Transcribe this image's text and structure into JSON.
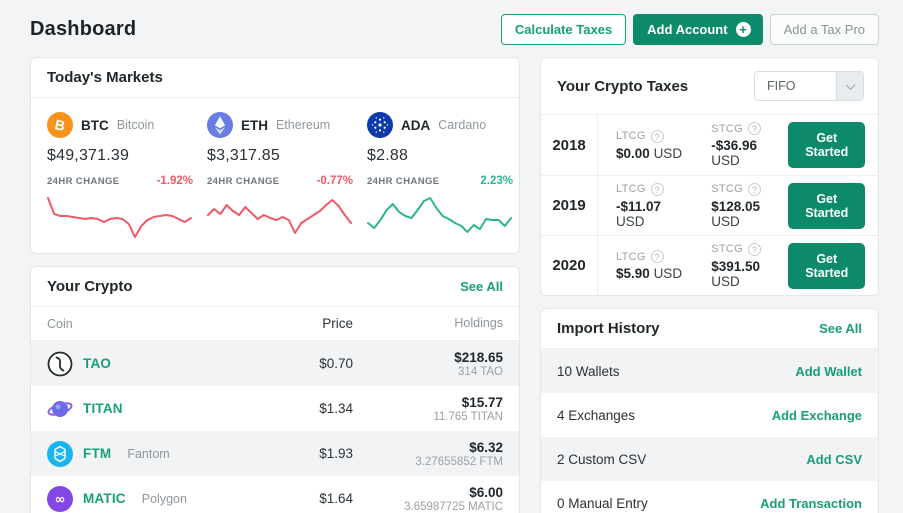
{
  "header": {
    "title": "Dashboard",
    "calculate_taxes_label": "Calculate Taxes",
    "add_account_label": "Add Account",
    "add_tax_pro_label": "Add a Tax Pro"
  },
  "colors": {
    "negative": "#ee5a65",
    "positive": "#2fb58e",
    "accent_link": "#17a077",
    "accent_button": "#0d8a69"
  },
  "markets": {
    "title": "Today's Markets",
    "change_label": "24HR CHANGE",
    "coins": [
      {
        "symbol": "BTC",
        "name": "Bitcoin",
        "price": "$49,371.39",
        "change": "-1.92%",
        "direction": "down",
        "icon_color": "#f7931a",
        "sparkline": [
          5,
          21,
          23,
          23,
          24,
          25,
          26,
          25,
          26,
          29,
          26,
          25,
          26,
          31,
          44,
          33,
          27,
          24,
          23,
          22,
          23,
          26,
          29,
          25
        ]
      },
      {
        "symbol": "ETH",
        "name": "Ethereum",
        "price": "$3,317.85",
        "change": "-0.77%",
        "direction": "down",
        "icon_color": "#687ce3",
        "sparkline": [
          22,
          16,
          21,
          12,
          18,
          22,
          14,
          20,
          26,
          22,
          25,
          27,
          24,
          27,
          40,
          30,
          26,
          22,
          18,
          12,
          7,
          13,
          22,
          30
        ]
      },
      {
        "symbol": "ADA",
        "name": "Cardano",
        "price": "$2.88",
        "change": "2.23%",
        "direction": "up",
        "icon_color": "#0d3aa9",
        "sparkline": [
          30,
          35,
          27,
          17,
          11,
          19,
          23,
          25,
          17,
          8,
          5,
          15,
          23,
          26,
          30,
          33,
          39,
          32,
          36,
          26,
          27,
          27,
          33,
          25
        ]
      }
    ]
  },
  "chart_data": [
    {
      "type": "line",
      "title": "BTC 24hr sparkline",
      "series": [
        {
          "name": "BTC",
          "values": [
            5,
            21,
            23,
            23,
            24,
            25,
            26,
            25,
            26,
            29,
            26,
            25,
            26,
            31,
            44,
            33,
            27,
            24,
            23,
            22,
            23,
            26,
            29,
            25
          ]
        }
      ],
      "trend": "down"
    },
    {
      "type": "line",
      "title": "ETH 24hr sparkline",
      "series": [
        {
          "name": "ETH",
          "values": [
            22,
            16,
            21,
            12,
            18,
            22,
            14,
            20,
            26,
            22,
            25,
            27,
            24,
            27,
            40,
            30,
            26,
            22,
            18,
            12,
            7,
            13,
            22,
            30
          ]
        }
      ],
      "trend": "down"
    },
    {
      "type": "line",
      "title": "ADA 24hr sparkline",
      "series": [
        {
          "name": "ADA",
          "values": [
            30,
            35,
            27,
            17,
            11,
            19,
            23,
            25,
            17,
            8,
            5,
            15,
            23,
            26,
            30,
            33,
            39,
            32,
            36,
            26,
            27,
            27,
            33,
            25
          ]
        }
      ],
      "trend": "up"
    }
  ],
  "your_crypto": {
    "title": "Your Crypto",
    "see_all_label": "See All",
    "columns": {
      "coin": "Coin",
      "price": "Price",
      "holdings": "Holdings"
    },
    "rows": [
      {
        "symbol": "TAO",
        "name": "",
        "price": "$0.70",
        "value": "$218.65",
        "amount": "314 TAO",
        "icon_color": "#ffffff"
      },
      {
        "symbol": "TITAN",
        "name": "",
        "price": "$1.34",
        "value": "$15.77",
        "amount": "11.765 TITAN",
        "icon_color": "#5f6fe8"
      },
      {
        "symbol": "FTM",
        "name": "Fantom",
        "price": "$1.93",
        "value": "$6.32",
        "amount": "3.27655852 FTM",
        "icon_color": "#19b5ec"
      },
      {
        "symbol": "MATIC",
        "name": "Polygon",
        "price": "$1.64",
        "value": "$6.00",
        "amount": "3.65987725 MATIC",
        "icon_color": "#8247e5"
      }
    ]
  },
  "taxes": {
    "title": "Your Crypto Taxes",
    "method": "FIFO",
    "ltcg_label": "LTCG",
    "stcg_label": "STCG",
    "currency": "USD",
    "cta_label": "Get Started",
    "years": [
      {
        "year": "2018",
        "ltcg": "$0.00",
        "stcg": "-$36.96"
      },
      {
        "year": "2019",
        "ltcg": "-$11.07",
        "stcg": "$128.05"
      },
      {
        "year": "2020",
        "ltcg": "$5.90",
        "stcg": "$391.50"
      }
    ]
  },
  "import_history": {
    "title": "Import History",
    "see_all_label": "See All",
    "rows": [
      {
        "label": "10 Wallets",
        "action": "Add Wallet"
      },
      {
        "label": "4 Exchanges",
        "action": "Add Exchange"
      },
      {
        "label": "2 Custom CSV",
        "action": "Add CSV"
      },
      {
        "label": "0 Manual Entry",
        "action": "Add Transaction"
      }
    ]
  }
}
